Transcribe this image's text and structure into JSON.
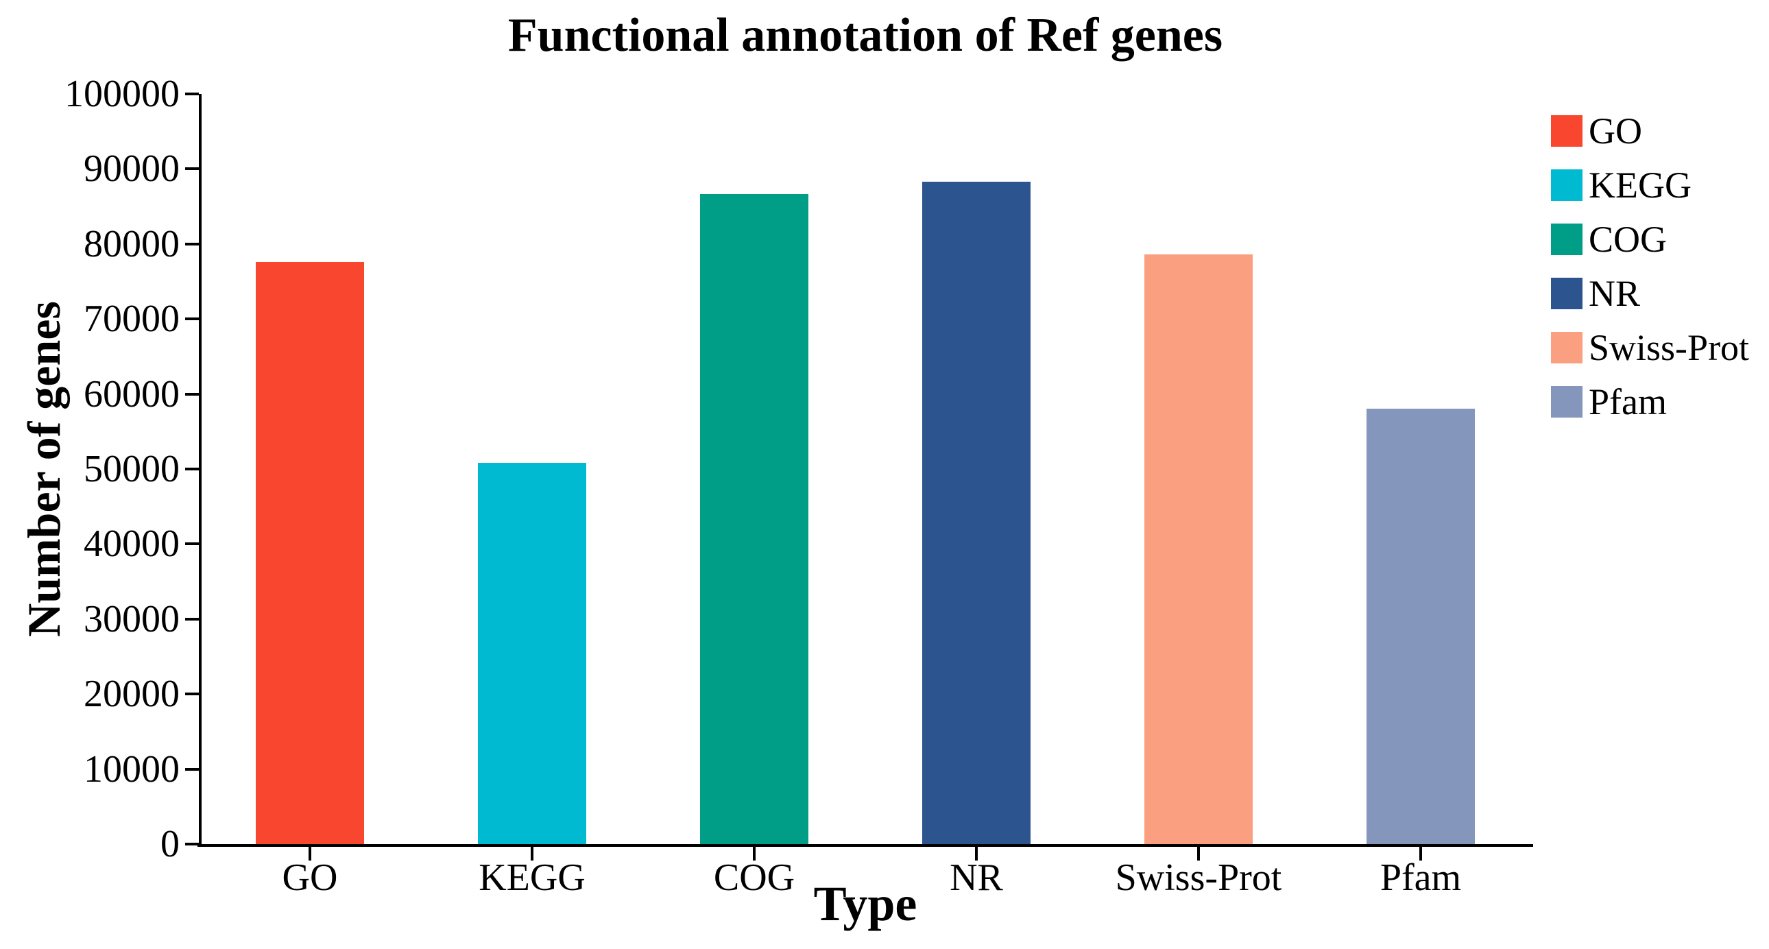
{
  "chart_data": {
    "type": "bar",
    "title": "Functional annotation of Ref genes",
    "xlabel": "Type",
    "ylabel": "Number of genes",
    "categories": [
      "GO",
      "KEGG",
      "COG",
      "NR",
      "Swiss-Prot",
      "Pfam"
    ],
    "values": [
      77600,
      50800,
      86700,
      88300,
      78600,
      58000
    ],
    "colors": [
      "#F8472E",
      "#00BAD2",
      "#009E86",
      "#2C5590",
      "#FA9F80",
      "#8496BB"
    ],
    "ylim": [
      0,
      100000
    ],
    "yticks": [
      0,
      10000,
      20000,
      30000,
      40000,
      50000,
      60000,
      70000,
      80000,
      90000,
      100000
    ],
    "grid": false,
    "legend": {
      "position": "right",
      "entries": [
        {
          "label": "GO",
          "color": "#F8472E"
        },
        {
          "label": "KEGG",
          "color": "#00BAD2"
        },
        {
          "label": "COG",
          "color": "#009E86"
        },
        {
          "label": "NR",
          "color": "#2C5590"
        },
        {
          "label": "Swiss-Prot",
          "color": "#FA9F80"
        },
        {
          "label": "Pfam",
          "color": "#8496BB"
        }
      ]
    }
  }
}
